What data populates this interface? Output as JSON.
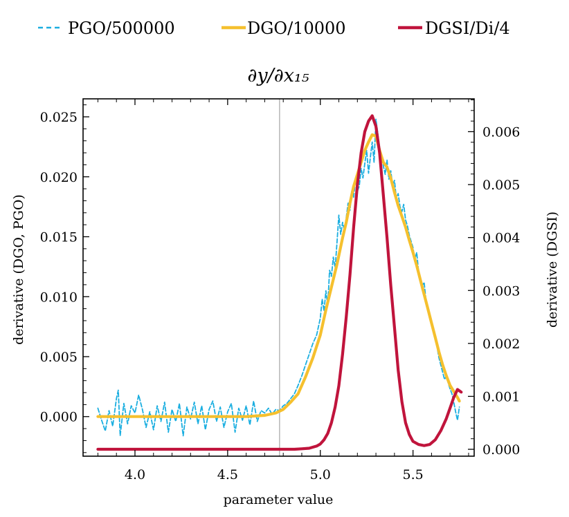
{
  "chart_data": {
    "type": "line",
    "title": "∂y/∂x₁₅",
    "xlabel": "parameter value",
    "ylabel_left": "derivative (DGO, PGO)",
    "ylabel_right": "derivative (DGSI)",
    "xlim": [
      3.72,
      5.83
    ],
    "ylim_left": [
      -0.0033,
      0.0265
    ],
    "ylim_right": [
      -0.00013,
      0.00662
    ],
    "x_ticks": [
      4.0,
      4.5,
      5.0,
      5.5
    ],
    "x_tick_labels": [
      "4.0",
      "4.5",
      "5.0",
      "5.5"
    ],
    "y_left_ticks": [
      0.0,
      0.005,
      0.01,
      0.015,
      0.02,
      0.025
    ],
    "y_left_tick_labels": [
      "0.000",
      "0.005",
      "0.010",
      "0.015",
      "0.020",
      "0.025"
    ],
    "y_right_ticks": [
      0.0,
      0.001,
      0.002,
      0.003,
      0.004,
      0.005,
      0.006
    ],
    "y_right_tick_labels": [
      "0.000",
      "0.001",
      "0.002",
      "0.003",
      "0.004",
      "0.005",
      "0.006"
    ],
    "vline_x": 4.78,
    "series": [
      {
        "name": "PGO/500000",
        "axis": "left",
        "style": "dashed",
        "color": "#1aaee0",
        "points": [
          [
            3.8,
            0.0007
          ],
          [
            3.82,
            -0.0003
          ],
          [
            3.84,
            -0.0012
          ],
          [
            3.86,
            0.0005
          ],
          [
            3.88,
            -0.0008
          ],
          [
            3.9,
            0.0015
          ],
          [
            3.91,
            0.0022
          ],
          [
            3.92,
            -0.0016
          ],
          [
            3.94,
            0.0011
          ],
          [
            3.96,
            -0.0006
          ],
          [
            3.98,
            0.0009
          ],
          [
            4.0,
            0.0003
          ],
          [
            4.02,
            0.0018
          ],
          [
            4.04,
            0.0006
          ],
          [
            4.06,
            -0.0009
          ],
          [
            4.08,
            0.0004
          ],
          [
            4.1,
            -0.0011
          ],
          [
            4.12,
            0.0009
          ],
          [
            4.14,
            -0.0004
          ],
          [
            4.16,
            0.0012
          ],
          [
            4.18,
            -0.0013
          ],
          [
            4.2,
            0.0006
          ],
          [
            4.22,
            -0.0004
          ],
          [
            4.24,
            0.0011
          ],
          [
            4.26,
            -0.0016
          ],
          [
            4.28,
            0.0008
          ],
          [
            4.3,
            -0.0002
          ],
          [
            4.32,
            0.0012
          ],
          [
            4.34,
            -0.0006
          ],
          [
            4.36,
            0.0009
          ],
          [
            4.38,
            -0.0011
          ],
          [
            4.4,
            0.0006
          ],
          [
            4.42,
            0.0013
          ],
          [
            4.44,
            -0.0004
          ],
          [
            4.46,
            0.0008
          ],
          [
            4.48,
            -0.0009
          ],
          [
            4.5,
            0.0004
          ],
          [
            4.52,
            0.0011
          ],
          [
            4.54,
            -0.0013
          ],
          [
            4.56,
            0.0007
          ],
          [
            4.58,
            -0.0003
          ],
          [
            4.6,
            0.0009
          ],
          [
            4.62,
            -0.0007
          ],
          [
            4.64,
            0.0013
          ],
          [
            4.66,
            -0.0004
          ],
          [
            4.68,
            0.0005
          ],
          [
            4.7,
            0.0003
          ],
          [
            4.72,
            0.0007
          ],
          [
            4.74,
            0.0002
          ],
          [
            4.76,
            0.0006
          ],
          [
            4.78,
            0.0005
          ],
          [
            4.8,
            0.0009
          ],
          [
            4.82,
            0.0011
          ],
          [
            4.84,
            0.0015
          ],
          [
            4.86,
            0.0019
          ],
          [
            4.88,
            0.0026
          ],
          [
            4.9,
            0.0034
          ],
          [
            4.92,
            0.0043
          ],
          [
            4.94,
            0.0052
          ],
          [
            4.96,
            0.0061
          ],
          [
            4.98,
            0.0068
          ],
          [
            5.0,
            0.0082
          ],
          [
            5.01,
            0.0098
          ],
          [
            5.02,
            0.0088
          ],
          [
            5.03,
            0.0105
          ],
          [
            5.04,
            0.0093
          ],
          [
            5.05,
            0.0122
          ],
          [
            5.06,
            0.0117
          ],
          [
            5.07,
            0.0133
          ],
          [
            5.08,
            0.0124
          ],
          [
            5.09,
            0.0145
          ],
          [
            5.1,
            0.0168
          ],
          [
            5.11,
            0.0152
          ],
          [
            5.12,
            0.0162
          ],
          [
            5.13,
            0.0155
          ],
          [
            5.14,
            0.0166
          ],
          [
            5.15,
            0.0178
          ],
          [
            5.16,
            0.0172
          ],
          [
            5.17,
            0.0189
          ],
          [
            5.18,
            0.0183
          ],
          [
            5.19,
            0.0198
          ],
          [
            5.2,
            0.0188
          ],
          [
            5.21,
            0.0192
          ],
          [
            5.22,
            0.0207
          ],
          [
            5.23,
            0.0199
          ],
          [
            5.24,
            0.0211
          ],
          [
            5.25,
            0.0222
          ],
          [
            5.26,
            0.0203
          ],
          [
            5.27,
            0.0216
          ],
          [
            5.28,
            0.0229
          ],
          [
            5.29,
            0.0212
          ],
          [
            5.3,
            0.0248
          ],
          [
            5.31,
            0.0236
          ],
          [
            5.32,
            0.0224
          ],
          [
            5.33,
            0.0218
          ],
          [
            5.34,
            0.0209
          ],
          [
            5.35,
            0.0202
          ],
          [
            5.36,
            0.0214
          ],
          [
            5.37,
            0.0198
          ],
          [
            5.38,
            0.0205
          ],
          [
            5.39,
            0.0193
          ],
          [
            5.4,
            0.0197
          ],
          [
            5.41,
            0.0182
          ],
          [
            5.42,
            0.0186
          ],
          [
            5.43,
            0.0175
          ],
          [
            5.44,
            0.0171
          ],
          [
            5.45,
            0.0177
          ],
          [
            5.46,
            0.0164
          ],
          [
            5.47,
            0.0159
          ],
          [
            5.48,
            0.0151
          ],
          [
            5.49,
            0.0146
          ],
          [
            5.5,
            0.0141
          ],
          [
            5.51,
            0.0131
          ],
          [
            5.52,
            0.0137
          ],
          [
            5.53,
            0.0121
          ],
          [
            5.54,
            0.0116
          ],
          [
            5.55,
            0.0109
          ],
          [
            5.56,
            0.0112
          ],
          [
            5.57,
            0.0097
          ],
          [
            5.58,
            0.0091
          ],
          [
            5.59,
            0.0085
          ],
          [
            5.6,
            0.0079
          ],
          [
            5.61,
            0.0072
          ],
          [
            5.62,
            0.0066
          ],
          [
            5.63,
            0.0058
          ],
          [
            5.64,
            0.0049
          ],
          [
            5.65,
            0.0043
          ],
          [
            5.66,
            0.0037
          ],
          [
            5.67,
            0.0031
          ],
          [
            5.68,
            0.0034
          ],
          [
            5.69,
            0.0028
          ],
          [
            5.7,
            0.0023
          ],
          [
            5.71,
            0.0019
          ],
          [
            5.72,
            0.0012
          ],
          [
            5.73,
            0.0004
          ],
          [
            5.74,
            -0.0003
          ],
          [
            5.75,
            0.0008
          ]
        ]
      },
      {
        "name": "DGO/10000",
        "axis": "left",
        "style": "solid",
        "color": "#f5c02e",
        "points": [
          [
            3.8,
            0.0
          ],
          [
            4.0,
            0.0
          ],
          [
            4.2,
            0.0
          ],
          [
            4.4,
            0.0
          ],
          [
            4.6,
            0.0
          ],
          [
            4.7,
            0.0001
          ],
          [
            4.76,
            0.0003
          ],
          [
            4.8,
            0.0006
          ],
          [
            4.84,
            0.0012
          ],
          [
            4.88,
            0.0019
          ],
          [
            4.92,
            0.0033
          ],
          [
            4.96,
            0.0049
          ],
          [
            5.0,
            0.0068
          ],
          [
            5.03,
            0.0089
          ],
          [
            5.06,
            0.0108
          ],
          [
            5.09,
            0.0127
          ],
          [
            5.12,
            0.0149
          ],
          [
            5.14,
            0.0162
          ],
          [
            5.16,
            0.0178
          ],
          [
            5.18,
            0.0192
          ],
          [
            5.2,
            0.0202
          ],
          [
            5.22,
            0.0212
          ],
          [
            5.24,
            0.0222
          ],
          [
            5.26,
            0.0229
          ],
          [
            5.28,
            0.0235
          ],
          [
            5.3,
            0.0234
          ],
          [
            5.32,
            0.0222
          ],
          [
            5.34,
            0.0212
          ],
          [
            5.36,
            0.0208
          ],
          [
            5.38,
            0.0199
          ],
          [
            5.4,
            0.0187
          ],
          [
            5.42,
            0.0176
          ],
          [
            5.44,
            0.0167
          ],
          [
            5.46,
            0.0158
          ],
          [
            5.48,
            0.0147
          ],
          [
            5.5,
            0.0137
          ],
          [
            5.52,
            0.0126
          ],
          [
            5.54,
            0.0114
          ],
          [
            5.56,
            0.0102
          ],
          [
            5.58,
            0.009
          ],
          [
            5.6,
            0.0078
          ],
          [
            5.62,
            0.0066
          ],
          [
            5.64,
            0.0054
          ],
          [
            5.66,
            0.0043
          ],
          [
            5.68,
            0.0034
          ],
          [
            5.7,
            0.0026
          ],
          [
            5.72,
            0.0021
          ],
          [
            5.74,
            0.0016
          ],
          [
            5.75,
            0.0013
          ]
        ]
      },
      {
        "name": "DGSI/Di/4",
        "axis": "right",
        "style": "solid",
        "color": "#c0143c",
        "points": [
          [
            3.8,
            0.0
          ],
          [
            4.0,
            0.0
          ],
          [
            4.2,
            0.0
          ],
          [
            4.4,
            0.0
          ],
          [
            4.6,
            0.0
          ],
          [
            4.8,
            0.0
          ],
          [
            4.86,
            0.0
          ],
          [
            4.9,
            1e-05
          ],
          [
            4.94,
            2e-05
          ],
          [
            4.98,
            6e-05
          ],
          [
            5.0,
            0.0001
          ],
          [
            5.02,
            0.00018
          ],
          [
            5.04,
            0.0003
          ],
          [
            5.06,
            0.0005
          ],
          [
            5.08,
            0.0008
          ],
          [
            5.1,
            0.0012
          ],
          [
            5.12,
            0.0018
          ],
          [
            5.14,
            0.0025
          ],
          [
            5.16,
            0.0033
          ],
          [
            5.18,
            0.0042
          ],
          [
            5.2,
            0.005
          ],
          [
            5.22,
            0.0056
          ],
          [
            5.24,
            0.006
          ],
          [
            5.26,
            0.0062
          ],
          [
            5.28,
            0.0063
          ],
          [
            5.3,
            0.0061
          ],
          [
            5.32,
            0.0056
          ],
          [
            5.34,
            0.0048
          ],
          [
            5.36,
            0.004
          ],
          [
            5.38,
            0.0031
          ],
          [
            5.4,
            0.0023
          ],
          [
            5.42,
            0.0015
          ],
          [
            5.44,
            0.0009
          ],
          [
            5.46,
            0.0005
          ],
          [
            5.48,
            0.00028
          ],
          [
            5.5,
            0.00015
          ],
          [
            5.53,
            9e-05
          ],
          [
            5.56,
            7e-05
          ],
          [
            5.59,
            9e-05
          ],
          [
            5.62,
            0.00018
          ],
          [
            5.65,
            0.00035
          ],
          [
            5.68,
            0.00058
          ],
          [
            5.7,
            0.00078
          ],
          [
            5.72,
            0.00098
          ],
          [
            5.74,
            0.00113
          ],
          [
            5.76,
            0.00108
          ]
        ]
      }
    ],
    "legend": [
      {
        "label": "PGO/500000",
        "style": "dashed",
        "color": "#1aaee0"
      },
      {
        "label": "DGO/10000",
        "style": "solid",
        "color": "#f5c02e"
      },
      {
        "label": "DGSI/Di/4",
        "style": "solid",
        "color": "#c0143c"
      }
    ]
  }
}
